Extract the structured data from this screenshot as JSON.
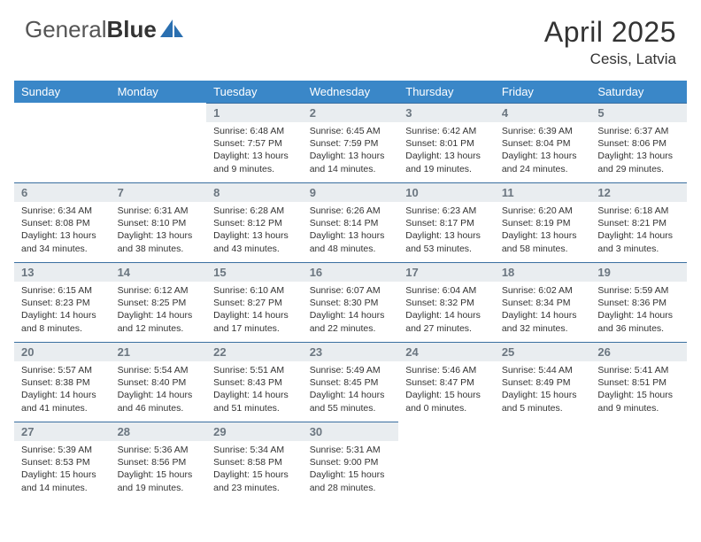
{
  "brand": {
    "part1": "General",
    "part2": "Blue"
  },
  "title": "April 2025",
  "location": "Cesis, Latvia",
  "colors": {
    "header_bg": "#3a87c8",
    "header_text": "#ffffff",
    "daynum_bg": "#e9edf0",
    "daynum_text": "#6b7680",
    "rule": "#3a6fa0",
    "body_bg": "#ffffff",
    "text": "#333333",
    "logo_accent": "#2a6fb0"
  },
  "weekdays": [
    "Sunday",
    "Monday",
    "Tuesday",
    "Wednesday",
    "Thursday",
    "Friday",
    "Saturday"
  ],
  "layout": {
    "first_weekday_index": 2,
    "days_in_month": 30,
    "cols": 7
  },
  "days": [
    {
      "n": 1,
      "sunrise": "6:48 AM",
      "sunset": "7:57 PM",
      "daylight": "13 hours and 9 minutes."
    },
    {
      "n": 2,
      "sunrise": "6:45 AM",
      "sunset": "7:59 PM",
      "daylight": "13 hours and 14 minutes."
    },
    {
      "n": 3,
      "sunrise": "6:42 AM",
      "sunset": "8:01 PM",
      "daylight": "13 hours and 19 minutes."
    },
    {
      "n": 4,
      "sunrise": "6:39 AM",
      "sunset": "8:04 PM",
      "daylight": "13 hours and 24 minutes."
    },
    {
      "n": 5,
      "sunrise": "6:37 AM",
      "sunset": "8:06 PM",
      "daylight": "13 hours and 29 minutes."
    },
    {
      "n": 6,
      "sunrise": "6:34 AM",
      "sunset": "8:08 PM",
      "daylight": "13 hours and 34 minutes."
    },
    {
      "n": 7,
      "sunrise": "6:31 AM",
      "sunset": "8:10 PM",
      "daylight": "13 hours and 38 minutes."
    },
    {
      "n": 8,
      "sunrise": "6:28 AM",
      "sunset": "8:12 PM",
      "daylight": "13 hours and 43 minutes."
    },
    {
      "n": 9,
      "sunrise": "6:26 AM",
      "sunset": "8:14 PM",
      "daylight": "13 hours and 48 minutes."
    },
    {
      "n": 10,
      "sunrise": "6:23 AM",
      "sunset": "8:17 PM",
      "daylight": "13 hours and 53 minutes."
    },
    {
      "n": 11,
      "sunrise": "6:20 AM",
      "sunset": "8:19 PM",
      "daylight": "13 hours and 58 minutes."
    },
    {
      "n": 12,
      "sunrise": "6:18 AM",
      "sunset": "8:21 PM",
      "daylight": "14 hours and 3 minutes."
    },
    {
      "n": 13,
      "sunrise": "6:15 AM",
      "sunset": "8:23 PM",
      "daylight": "14 hours and 8 minutes."
    },
    {
      "n": 14,
      "sunrise": "6:12 AM",
      "sunset": "8:25 PM",
      "daylight": "14 hours and 12 minutes."
    },
    {
      "n": 15,
      "sunrise": "6:10 AM",
      "sunset": "8:27 PM",
      "daylight": "14 hours and 17 minutes."
    },
    {
      "n": 16,
      "sunrise": "6:07 AM",
      "sunset": "8:30 PM",
      "daylight": "14 hours and 22 minutes."
    },
    {
      "n": 17,
      "sunrise": "6:04 AM",
      "sunset": "8:32 PM",
      "daylight": "14 hours and 27 minutes."
    },
    {
      "n": 18,
      "sunrise": "6:02 AM",
      "sunset": "8:34 PM",
      "daylight": "14 hours and 32 minutes."
    },
    {
      "n": 19,
      "sunrise": "5:59 AM",
      "sunset": "8:36 PM",
      "daylight": "14 hours and 36 minutes."
    },
    {
      "n": 20,
      "sunrise": "5:57 AM",
      "sunset": "8:38 PM",
      "daylight": "14 hours and 41 minutes."
    },
    {
      "n": 21,
      "sunrise": "5:54 AM",
      "sunset": "8:40 PM",
      "daylight": "14 hours and 46 minutes."
    },
    {
      "n": 22,
      "sunrise": "5:51 AM",
      "sunset": "8:43 PM",
      "daylight": "14 hours and 51 minutes."
    },
    {
      "n": 23,
      "sunrise": "5:49 AM",
      "sunset": "8:45 PM",
      "daylight": "14 hours and 55 minutes."
    },
    {
      "n": 24,
      "sunrise": "5:46 AM",
      "sunset": "8:47 PM",
      "daylight": "15 hours and 0 minutes."
    },
    {
      "n": 25,
      "sunrise": "5:44 AM",
      "sunset": "8:49 PM",
      "daylight": "15 hours and 5 minutes."
    },
    {
      "n": 26,
      "sunrise": "5:41 AM",
      "sunset": "8:51 PM",
      "daylight": "15 hours and 9 minutes."
    },
    {
      "n": 27,
      "sunrise": "5:39 AM",
      "sunset": "8:53 PM",
      "daylight": "15 hours and 14 minutes."
    },
    {
      "n": 28,
      "sunrise": "5:36 AM",
      "sunset": "8:56 PM",
      "daylight": "15 hours and 19 minutes."
    },
    {
      "n": 29,
      "sunrise": "5:34 AM",
      "sunset": "8:58 PM",
      "daylight": "15 hours and 23 minutes."
    },
    {
      "n": 30,
      "sunrise": "5:31 AM",
      "sunset": "9:00 PM",
      "daylight": "15 hours and 28 minutes."
    }
  ],
  "labels": {
    "sunrise": "Sunrise:",
    "sunset": "Sunset:",
    "daylight": "Daylight:"
  }
}
